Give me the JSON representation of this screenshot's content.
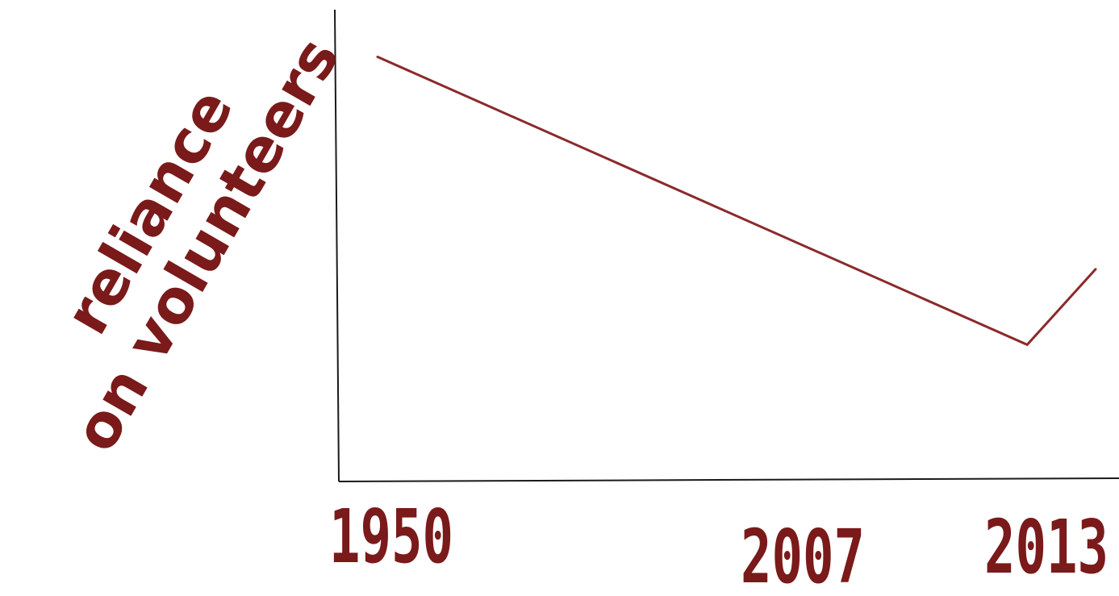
{
  "chart_data": {
    "type": "line",
    "title": "",
    "xlabel": "",
    "ylabel_lines": [
      "reliance",
      "on volunteers"
    ],
    "x": [
      1950,
      2007,
      2013
    ],
    "x_tick_labels": [
      "1950",
      "2007",
      "2013"
    ],
    "series": [
      {
        "values": [
          0.9,
          0.29,
          0.45
        ]
      }
    ],
    "y_ticks_shown": false,
    "grid": false,
    "legend": "none",
    "colors": {
      "line": "#8b2a2a",
      "labels": "#7a1a1a",
      "axis": "#1a1a1a"
    }
  }
}
